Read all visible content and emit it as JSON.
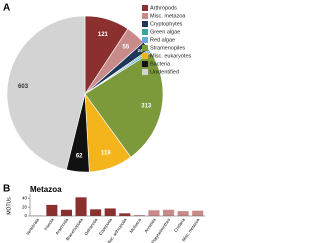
{
  "chart_data": [
    {
      "type": "pie",
      "panel": "A",
      "categories": [
        "Arthropods",
        "Misc. metazoa",
        "Cryptophytes",
        "Green algae",
        "Red algae",
        "Stramenopiles",
        "Misc. eukaryotes",
        "Bacteria",
        "Unidentified"
      ],
      "values": [
        121,
        55,
        24,
        4,
        6,
        313,
        119,
        62,
        603
      ],
      "colors": [
        "#8c2f2f",
        "#c98a8a",
        "#1f3658",
        "#3aa39c",
        "#6aaad8",
        "#7c9a3c",
        "#f4b41c",
        "#111111",
        "#d3d3d3"
      ]
    },
    {
      "type": "bar",
      "panel": "B",
      "title": "Metazoa",
      "ylabel": "MOTUs",
      "categories": [
        "Vertebrata",
        "Insecta",
        "Arachnida",
        "Branchiopoda",
        "Ostracoda",
        "Copepoda",
        "Misc. arthropoda",
        "Mollusca",
        "Annelida",
        "Platyhelminthes",
        "Cnidaria",
        "Misc. metazoa"
      ],
      "values": [
        1,
        25,
        14,
        42,
        15,
        17,
        6,
        2,
        13,
        14,
        11,
        12
      ],
      "colors": [
        "#c98a8a",
        "#8c2f2f",
        "#8c2f2f",
        "#8c2f2f",
        "#8c2f2f",
        "#8c2f2f",
        "#8c2f2f",
        "#c98a8a",
        "#c98a8a",
        "#c98a8a",
        "#c98a8a",
        "#c98a8a"
      ],
      "ylim": [
        0,
        45
      ],
      "yticks": [
        0,
        20,
        40
      ]
    }
  ]
}
